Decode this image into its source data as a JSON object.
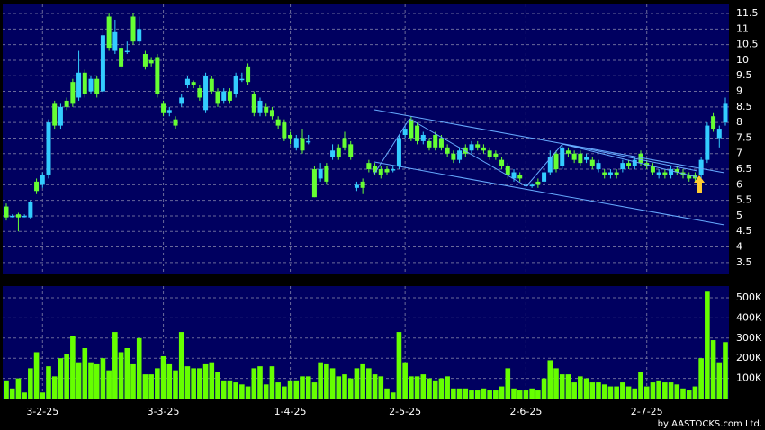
{
  "credit": "by AASTOCKS.com Ltd.",
  "chart_data": [
    {
      "type": "candlestick",
      "categories": [
        null,
        null,
        null,
        null,
        null,
        null,
        "3-2-25",
        null,
        null,
        null,
        null,
        null,
        null,
        null,
        null,
        null,
        null,
        null,
        null,
        null,
        null,
        null,
        null,
        null,
        null,
        null,
        "3-3-25",
        null,
        null,
        null,
        null,
        null,
        null,
        null,
        null,
        null,
        null,
        null,
        null,
        null,
        null,
        null,
        null,
        null,
        null,
        null,
        null,
        "1-4-25",
        null,
        null,
        null,
        null,
        null,
        null,
        null,
        null,
        null,
        null,
        null,
        null,
        null,
        null,
        null,
        null,
        null,
        null,
        "2-5-25",
        null,
        null,
        null,
        null,
        null,
        null,
        null,
        null,
        null,
        null,
        null,
        null,
        null,
        null,
        null,
        null,
        null,
        null,
        null,
        "2-6-25",
        null,
        null,
        null,
        null,
        null,
        null,
        null,
        null,
        null,
        null,
        null,
        null,
        null,
        null,
        null,
        null,
        null,
        null,
        null,
        "2-7-25",
        null,
        null,
        null,
        null,
        null,
        null,
        null,
        null,
        null,
        null,
        null,
        null,
        null
      ],
      "open": [
        5.3,
        5.0,
        5.05,
        5.0,
        4.95,
        6.1,
        6.0,
        6.3,
        8.6,
        7.9,
        8.7,
        9.3,
        8.8,
        9.6,
        9.0,
        9.4,
        9.0,
        11.4,
        10.3,
        10.4,
        10.3,
        11.4,
        10.6,
        10.2,
        10.0,
        10.1,
        8.6,
        8.3,
        8.1,
        8.6,
        9.2,
        9.3,
        9.1,
        8.4,
        9.4,
        9.0,
        8.7,
        9.0,
        8.9,
        9.4,
        9.8,
        8.9,
        8.3,
        8.5,
        8.4,
        8.1,
        8.0,
        7.6,
        7.2,
        7.5,
        7.4,
        6.5,
        6.2,
        6.6,
        6.9,
        7.2,
        7.5,
        7.3,
        5.9,
        6.1,
        6.7,
        6.6,
        6.5,
        6.5,
        6.5,
        6.6,
        7.6,
        8.1,
        7.9,
        7.4,
        7.4,
        7.6,
        7.5,
        7.2,
        7.0,
        6.8,
        7.2,
        7.1,
        7.3,
        7.2,
        7.1,
        7.0,
        6.8,
        6.6,
        6.2,
        6.3,
        6.0,
        5.95,
        6.1,
        6.1,
        6.4,
        7.0,
        6.6,
        7.1,
        7.0,
        7.0,
        6.8,
        6.8,
        6.5,
        6.4,
        6.3,
        6.4,
        6.5,
        6.7,
        6.6,
        7.0,
        6.7,
        6.6,
        6.3,
        6.4,
        6.3,
        6.5,
        6.4,
        6.3,
        6.3,
        6.3,
        6.8,
        8.2,
        7.5,
        8.0
      ],
      "high": [
        5.4,
        5.05,
        5.1,
        5.05,
        5.5,
        6.2,
        6.4,
        8.1,
        8.7,
        8.6,
        8.8,
        9.4,
        10.3,
        9.7,
        9.5,
        9.5,
        11.0,
        11.5,
        11.3,
        10.5,
        10.6,
        11.5,
        11.4,
        10.3,
        10.1,
        10.2,
        8.7,
        8.5,
        8.2,
        8.9,
        9.5,
        9.35,
        9.2,
        9.6,
        9.5,
        9.1,
        9.1,
        9.1,
        9.6,
        9.6,
        9.9,
        9.0,
        8.8,
        8.6,
        8.5,
        8.2,
        8.1,
        7.7,
        7.6,
        7.8,
        7.6,
        6.6,
        6.7,
        6.7,
        7.3,
        7.3,
        7.7,
        7.4,
        6.1,
        6.2,
        6.8,
        6.7,
        6.6,
        6.6,
        6.6,
        7.6,
        7.9,
        8.2,
        8.0,
        7.7,
        7.5,
        7.7,
        7.6,
        7.3,
        7.1,
        7.2,
        7.3,
        7.4,
        7.4,
        7.3,
        7.2,
        7.1,
        6.9,
        6.7,
        6.5,
        6.4,
        6.1,
        6.05,
        6.2,
        6.5,
        7.1,
        7.1,
        7.3,
        7.2,
        7.1,
        7.1,
        7.0,
        6.9,
        6.8,
        6.5,
        6.5,
        6.5,
        6.8,
        6.8,
        6.9,
        7.1,
        6.8,
        6.7,
        6.5,
        6.5,
        6.6,
        6.6,
        6.5,
        6.4,
        6.4,
        6.9,
        8.0,
        8.3,
        7.9,
        8.8
      ],
      "low": [
        4.85,
        4.95,
        4.5,
        4.95,
        4.9,
        5.7,
        5.9,
        6.2,
        7.8,
        7.8,
        8.4,
        8.5,
        8.7,
        8.8,
        8.9,
        8.8,
        8.9,
        10.3,
        10.2,
        9.7,
        10.2,
        10.5,
        10.5,
        9.7,
        9.8,
        8.8,
        8.2,
        8.2,
        7.8,
        8.5,
        9.1,
        9.1,
        8.7,
        8.3,
        8.9,
        8.5,
        8.6,
        8.6,
        8.8,
        9.3,
        9.2,
        8.2,
        8.2,
        8.2,
        8.1,
        7.8,
        7.4,
        7.3,
        7.1,
        7.0,
        7.3,
        5.6,
        6.1,
        6.0,
        6.8,
        6.8,
        7.1,
        6.8,
        5.8,
        5.7,
        6.4,
        6.3,
        6.2,
        6.3,
        6.4,
        6.5,
        7.5,
        7.4,
        7.3,
        7.3,
        7.1,
        7.1,
        7.1,
        6.9,
        6.7,
        6.7,
        6.9,
        7.0,
        7.1,
        7.0,
        6.8,
        6.8,
        6.5,
        6.2,
        6.1,
        6.1,
        5.9,
        5.9,
        5.9,
        6.0,
        6.3,
        6.4,
        6.5,
        6.9,
        6.7,
        6.6,
        6.7,
        6.5,
        6.4,
        6.2,
        6.2,
        6.2,
        6.4,
        6.5,
        6.5,
        6.6,
        6.5,
        6.3,
        6.2,
        6.2,
        6.2,
        6.3,
        6.2,
        6.1,
        6.1,
        6.2,
        6.7,
        7.7,
        7.2,
        7.9
      ],
      "close": [
        4.95,
        5.0,
        4.95,
        5.0,
        5.45,
        5.8,
        6.3,
        8.0,
        7.9,
        8.5,
        8.5,
        8.6,
        9.6,
        8.9,
        9.4,
        8.9,
        10.8,
        10.4,
        10.9,
        9.8,
        10.3,
        10.6,
        11.0,
        9.8,
        9.9,
        8.9,
        8.3,
        8.4,
        7.9,
        8.8,
        9.4,
        9.2,
        8.8,
        9.5,
        9.0,
        8.6,
        9.0,
        8.7,
        9.5,
        9.4,
        9.3,
        8.3,
        8.7,
        8.3,
        8.2,
        7.9,
        7.5,
        7.5,
        7.5,
        7.1,
        7.4,
        5.6,
        6.5,
        6.1,
        7.1,
        6.9,
        7.2,
        6.9,
        6.0,
        5.9,
        6.5,
        6.4,
        6.3,
        6.4,
        6.5,
        7.5,
        7.8,
        7.5,
        7.4,
        7.6,
        7.2,
        7.2,
        7.2,
        7.0,
        6.8,
        7.1,
        7.0,
        7.3,
        7.2,
        7.1,
        6.9,
        6.9,
        6.6,
        6.3,
        6.4,
        6.2,
        6.0,
        6.0,
        6.0,
        6.4,
        6.9,
        6.5,
        7.2,
        7.0,
        6.8,
        6.7,
        6.9,
        6.6,
        6.7,
        6.3,
        6.4,
        6.3,
        6.7,
        6.6,
        6.8,
        6.7,
        6.6,
        6.4,
        6.4,
        6.3,
        6.5,
        6.4,
        6.3,
        6.2,
        6.2,
        6.8,
        7.9,
        7.8,
        7.8,
        8.6
      ],
      "up_color": "#33ccff",
      "down_color": "#66ff33",
      "ylim": [
        3.12,
        11.79
      ],
      "yticks": [
        3.5,
        4,
        4.5,
        5,
        5.5,
        6,
        6.5,
        7,
        7.5,
        8,
        8.5,
        9,
        9.5,
        10,
        10.5,
        11,
        11.5
      ],
      "grid": true
    },
    {
      "type": "bar",
      "values": [
        90000,
        50000,
        100000,
        30000,
        150000,
        230000,
        30000,
        160000,
        110000,
        200000,
        220000,
        310000,
        180000,
        250000,
        180000,
        170000,
        200000,
        140000,
        330000,
        230000,
        250000,
        170000,
        300000,
        120000,
        120000,
        150000,
        210000,
        170000,
        140000,
        330000,
        160000,
        150000,
        150000,
        170000,
        180000,
        130000,
        90000,
        90000,
        80000,
        70000,
        60000,
        150000,
        160000,
        70000,
        160000,
        80000,
        60000,
        90000,
        90000,
        110000,
        110000,
        80000,
        180000,
        170000,
        150000,
        110000,
        120000,
        100000,
        150000,
        170000,
        150000,
        120000,
        110000,
        50000,
        30000,
        330000,
        180000,
        110000,
        110000,
        120000,
        100000,
        90000,
        100000,
        110000,
        50000,
        50000,
        50000,
        40000,
        40000,
        50000,
        40000,
        40000,
        60000,
        150000,
        50000,
        40000,
        40000,
        50000,
        40000,
        100000,
        190000,
        150000,
        120000,
        120000,
        80000,
        110000,
        100000,
        80000,
        80000,
        70000,
        60000,
        60000,
        80000,
        60000,
        50000,
        130000,
        60000,
        80000,
        90000,
        80000,
        80000,
        70000,
        50000,
        40000,
        60000,
        200000,
        530000,
        290000,
        180000,
        280000
      ],
      "color": "#66ff00",
      "ylim": [
        0,
        558000
      ],
      "yticks": [
        {
          "value": 100000,
          "label": "100K"
        },
        {
          "value": 200000,
          "label": "200K"
        },
        {
          "value": 300000,
          "label": "300K"
        },
        {
          "value": 400000,
          "label": "400K"
        },
        {
          "value": 500000,
          "label": "500K"
        }
      ],
      "grid": true
    }
  ]
}
